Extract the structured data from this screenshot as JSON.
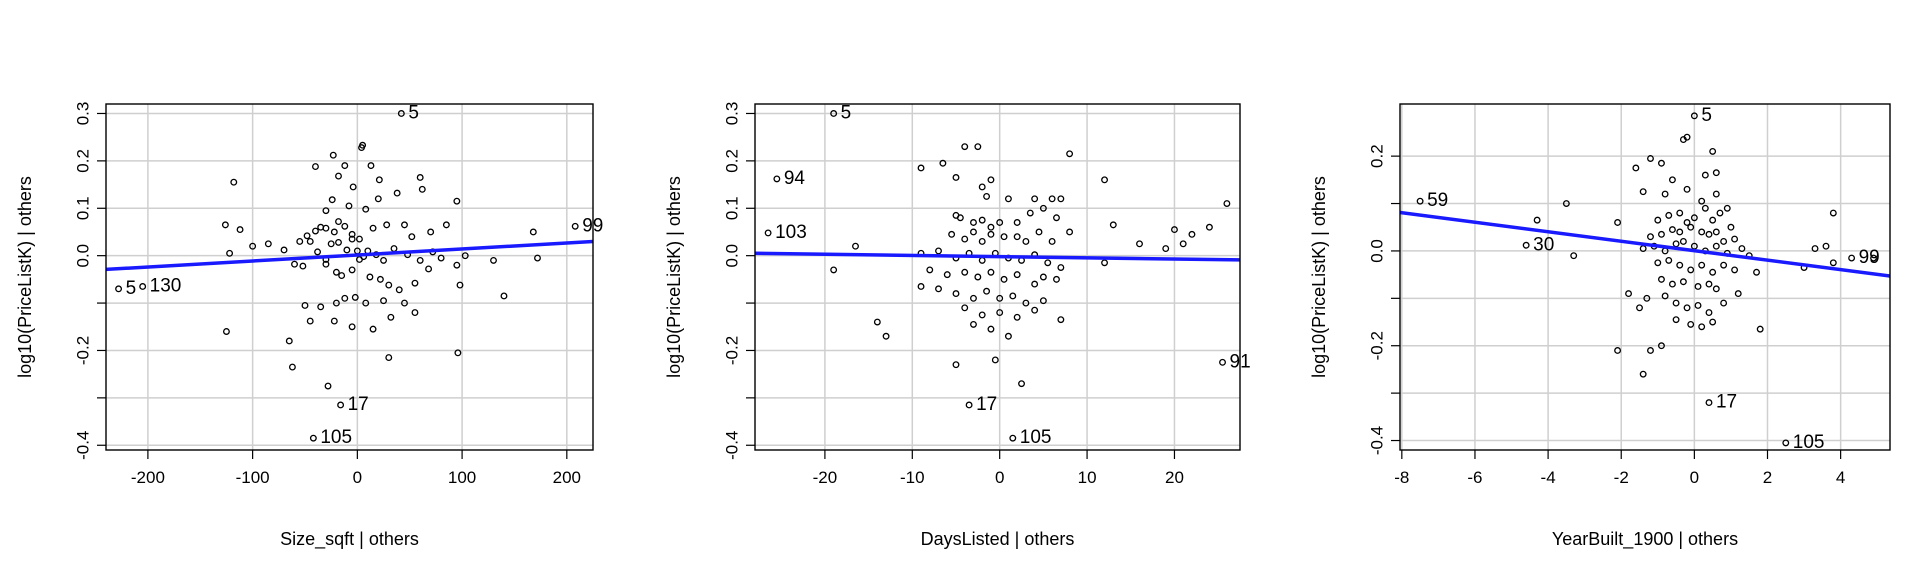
{
  "chart_data": [
    {
      "type": "scatter",
      "xlabel": "Size_sqft | others",
      "ylabel": "log10(PriceListK)  | others",
      "xlim": [
        -240,
        225
      ],
      "ylim": [
        -0.41,
        0.32
      ],
      "xticks": [
        -200,
        -100,
        0,
        100,
        200
      ],
      "yticks": [
        -0.4,
        -0.3,
        -0.2,
        -0.1,
        0.0,
        0.1,
        0.2,
        0.3
      ],
      "ytick_labels": [
        "-0.4",
        "",
        "-0.2",
        "",
        "0.0",
        "0.1",
        "0.2",
        "0.3"
      ],
      "grid": true,
      "fit_line": [
        [
          -240,
          -0.029
        ],
        [
          225,
          0.03
        ]
      ],
      "fit_color": "#1a1aff",
      "labels": [
        {
          "text": "5",
          "x": 42,
          "y": 0.3
        },
        {
          "text": "99",
          "x": 208,
          "y": 0.062
        },
        {
          "text": "5",
          "x": -228,
          "y": -0.07
        },
        {
          "text": "130",
          "x": -205,
          "y": -0.065
        },
        {
          "text": "17",
          "x": -16,
          "y": -0.315
        },
        {
          "text": "105",
          "x": -42,
          "y": -0.385
        }
      ],
      "points": [
        [
          42,
          0.3
        ],
        [
          5,
          0.233
        ],
        [
          4,
          0.228
        ],
        [
          208,
          0.062
        ],
        [
          -228,
          -0.07
        ],
        [
          -205,
          -0.065
        ],
        [
          -16,
          -0.315
        ],
        [
          -42,
          -0.385
        ],
        [
          -118,
          0.155
        ],
        [
          -23,
          0.212
        ],
        [
          -40,
          0.188
        ],
        [
          -12,
          0.19
        ],
        [
          -18,
          0.168
        ],
        [
          13,
          0.19
        ],
        [
          -4,
          0.145
        ],
        [
          60,
          0.165
        ],
        [
          21,
          0.16
        ],
        [
          38,
          0.132
        ],
        [
          62,
          0.14
        ],
        [
          20,
          0.12
        ],
        [
          -24,
          0.118
        ],
        [
          -8,
          0.105
        ],
        [
          -30,
          0.095
        ],
        [
          8,
          0.098
        ],
        [
          95,
          0.115
        ],
        [
          -126,
          0.065
        ],
        [
          -112,
          0.055
        ],
        [
          -100,
          0.02
        ],
        [
          -85,
          0.025
        ],
        [
          -70,
          0.012
        ],
        [
          -55,
          0.03
        ],
        [
          -48,
          0.042
        ],
        [
          -40,
          0.052
        ],
        [
          -35,
          0.06
        ],
        [
          -30,
          0.058
        ],
        [
          -22,
          0.05
        ],
        [
          -18,
          0.072
        ],
        [
          -12,
          0.062
        ],
        [
          -5,
          0.045
        ],
        [
          2,
          0.035
        ],
        [
          15,
          0.058
        ],
        [
          28,
          0.065
        ],
        [
          45,
          0.065
        ],
        [
          52,
          0.04
        ],
        [
          70,
          0.05
        ],
        [
          85,
          0.065
        ],
        [
          -45,
          0.03
        ],
        [
          -38,
          0.008
        ],
        [
          -30,
          -0.008
        ],
        [
          -25,
          0.025
        ],
        [
          -18,
          0.028
        ],
        [
          -10,
          0.012
        ],
        [
          -5,
          0.035
        ],
        [
          0,
          0.01
        ],
        [
          6,
          -0.002
        ],
        [
          10,
          0.01
        ],
        [
          18,
          0.002
        ],
        [
          25,
          -0.01
        ],
        [
          35,
          0.015
        ],
        [
          48,
          0.002
        ],
        [
          60,
          -0.01
        ],
        [
          72,
          0.008
        ],
        [
          80,
          -0.005
        ],
        [
          95,
          -0.02
        ],
        [
          -122,
          0.005
        ],
        [
          -60,
          -0.018
        ],
        [
          -52,
          -0.022
        ],
        [
          -30,
          -0.018
        ],
        [
          -20,
          -0.035
        ],
        [
          -15,
          -0.042
        ],
        [
          -5,
          -0.03
        ],
        [
          2,
          -0.008
        ],
        [
          12,
          -0.045
        ],
        [
          22,
          -0.05
        ],
        [
          30,
          -0.062
        ],
        [
          40,
          -0.072
        ],
        [
          55,
          -0.058
        ],
        [
          68,
          -0.028
        ],
        [
          98,
          -0.062
        ],
        [
          103,
          0.0
        ],
        [
          130,
          -0.01
        ],
        [
          140,
          -0.085
        ],
        [
          168,
          0.05
        ],
        [
          172,
          -0.005
        ],
        [
          -50,
          -0.105
        ],
        [
          -35,
          -0.108
        ],
        [
          -20,
          -0.1
        ],
        [
          -12,
          -0.09
        ],
        [
          -2,
          -0.088
        ],
        [
          8,
          -0.1
        ],
        [
          25,
          -0.095
        ],
        [
          45,
          -0.1
        ],
        [
          55,
          -0.12
        ],
        [
          -45,
          -0.138
        ],
        [
          -22,
          -0.138
        ],
        [
          -5,
          -0.15
        ],
        [
          15,
          -0.155
        ],
        [
          32,
          -0.13
        ],
        [
          -125,
          -0.16
        ],
        [
          -65,
          -0.18
        ],
        [
          -62,
          -0.235
        ],
        [
          -28,
          -0.275
        ],
        [
          30,
          -0.215
        ],
        [
          96,
          -0.205
        ]
      ]
    },
    {
      "type": "scatter",
      "xlabel": "DaysListed | others",
      "ylabel": "log10(PriceListK)  | others",
      "xlim": [
        -28,
        27.5
      ],
      "ylim": [
        -0.41,
        0.32
      ],
      "xticks": [
        -20,
        -10,
        0,
        10,
        20
      ],
      "yticks": [
        -0.4,
        -0.3,
        -0.2,
        -0.1,
        0.0,
        0.1,
        0.2,
        0.3
      ],
      "ytick_labels": [
        "-0.4",
        "",
        "-0.2",
        "",
        "0.0",
        "0.1",
        "0.2",
        "0.3"
      ],
      "grid": true,
      "fit_line": [
        [
          -28,
          0.005
        ],
        [
          27.5,
          -0.009
        ]
      ],
      "fit_color": "#1a1aff",
      "labels": [
        {
          "text": "5",
          "x": -19,
          "y": 0.3
        },
        {
          "text": "94",
          "x": -25.5,
          "y": 0.162
        },
        {
          "text": "103",
          "x": -26.5,
          "y": 0.048
        },
        {
          "text": "17",
          "x": -3.5,
          "y": -0.315
        },
        {
          "text": "105",
          "x": 1.5,
          "y": -0.385
        },
        {
          "text": "91",
          "x": 25.5,
          "y": -0.225
        }
      ],
      "points": [
        [
          -19,
          0.3
        ],
        [
          -25.5,
          0.162
        ],
        [
          -26.5,
          0.048
        ],
        [
          -3.5,
          -0.315
        ],
        [
          1.5,
          -0.385
        ],
        [
          25.5,
          -0.225
        ],
        [
          -19,
          -0.03
        ],
        [
          -16.5,
          0.02
        ],
        [
          -14,
          -0.14
        ],
        [
          -13,
          -0.17
        ],
        [
          -9,
          0.185
        ],
        [
          -6.5,
          0.195
        ],
        [
          -4,
          0.23
        ],
        [
          -2.5,
          0.23
        ],
        [
          -1,
          0.16
        ],
        [
          8,
          0.215
        ],
        [
          -5,
          0.165
        ],
        [
          -2,
          0.145
        ],
        [
          -1.5,
          0.125
        ],
        [
          1,
          0.12
        ],
        [
          4,
          0.12
        ],
        [
          6,
          0.12
        ],
        [
          12,
          0.16
        ],
        [
          -5,
          0.085
        ],
        [
          -4.5,
          0.08
        ],
        [
          -3,
          0.07
        ],
        [
          -2,
          0.075
        ],
        [
          -1,
          0.06
        ],
        [
          0,
          0.07
        ],
        [
          2,
          0.07
        ],
        [
          3.5,
          0.09
        ],
        [
          5,
          0.1
        ],
        [
          6.5,
          0.08
        ],
        [
          7,
          0.12
        ],
        [
          -5.5,
          0.045
        ],
        [
          -4,
          0.035
        ],
        [
          -3,
          0.05
        ],
        [
          -2,
          0.03
        ],
        [
          -1,
          0.045
        ],
        [
          0.5,
          0.04
        ],
        [
          2,
          0.04
        ],
        [
          3,
          0.03
        ],
        [
          4.5,
          0.05
        ],
        [
          6,
          0.03
        ],
        [
          8,
          0.05
        ],
        [
          13,
          0.065
        ],
        [
          16,
          0.025
        ],
        [
          20,
          0.055
        ],
        [
          22,
          0.045
        ],
        [
          24,
          0.06
        ],
        [
          26,
          0.11
        ],
        [
          19,
          0.015
        ],
        [
          21,
          0.025
        ],
        [
          -9,
          0.005
        ],
        [
          -7,
          0.01
        ],
        [
          -5,
          -0.005
        ],
        [
          -3.5,
          0.005
        ],
        [
          -2,
          -0.01
        ],
        [
          -0.5,
          0.005
        ],
        [
          1,
          -0.005
        ],
        [
          2.5,
          -0.01
        ],
        [
          4,
          0.002
        ],
        [
          5.5,
          -0.015
        ],
        [
          7,
          -0.025
        ],
        [
          12,
          -0.015
        ],
        [
          -8,
          -0.03
        ],
        [
          -6,
          -0.04
        ],
        [
          -4,
          -0.035
        ],
        [
          -2.5,
          -0.045
        ],
        [
          -1,
          -0.035
        ],
        [
          0.5,
          -0.05
        ],
        [
          2,
          -0.04
        ],
        [
          4,
          -0.06
        ],
        [
          5,
          -0.045
        ],
        [
          6.5,
          -0.05
        ],
        [
          -9,
          -0.065
        ],
        [
          -7,
          -0.07
        ],
        [
          -5,
          -0.08
        ],
        [
          -3,
          -0.09
        ],
        [
          -1.5,
          -0.075
        ],
        [
          0,
          -0.09
        ],
        [
          1.5,
          -0.085
        ],
        [
          3,
          -0.1
        ],
        [
          5,
          -0.095
        ],
        [
          -4,
          -0.11
        ],
        [
          -2,
          -0.125
        ],
        [
          0,
          -0.12
        ],
        [
          2,
          -0.13
        ],
        [
          4,
          -0.115
        ],
        [
          7,
          -0.135
        ],
        [
          -3,
          -0.145
        ],
        [
          -1,
          -0.155
        ],
        [
          1,
          -0.17
        ],
        [
          -5,
          -0.23
        ],
        [
          -0.5,
          -0.22
        ],
        [
          2.5,
          -0.27
        ]
      ]
    },
    {
      "type": "scatter",
      "xlabel": "YearBuilt_1900 | others",
      "ylabel": "log10(PriceListK)  | others",
      "xlim": [
        -8.05,
        5.35
      ],
      "ylim": [
        -0.42,
        0.31
      ],
      "xticks": [
        -8,
        -6,
        -4,
        -2,
        0,
        2,
        4
      ],
      "yticks": [
        -0.4,
        -0.3,
        -0.2,
        -0.1,
        0.0,
        0.1,
        0.2
      ],
      "ytick_labels": [
        "-0.4",
        "",
        "-0.2",
        "",
        "0.0",
        "",
        "0.2"
      ],
      "grid": true,
      "fit_line": [
        [
          -8.05,
          0.081
        ],
        [
          5.35,
          -0.053
        ]
      ],
      "fit_color": "#1a1aff",
      "labels": [
        {
          "text": "5",
          "x": 0.0,
          "y": 0.285
        },
        {
          "text": "59",
          "x": -7.5,
          "y": 0.105
        },
        {
          "text": "30",
          "x": -4.6,
          "y": 0.012
        },
        {
          "text": "99",
          "x": 4.3,
          "y": -0.015
        },
        {
          "text": "17",
          "x": 0.4,
          "y": -0.32
        },
        {
          "text": "105",
          "x": 2.5,
          "y": -0.405
        }
      ],
      "points": [
        [
          0.0,
          0.285
        ],
        [
          -7.5,
          0.105
        ],
        [
          -4.6,
          0.012
        ],
        [
          4.3,
          -0.015
        ],
        [
          0.4,
          -0.32
        ],
        [
          2.5,
          -0.405
        ],
        [
          -3.5,
          0.1
        ],
        [
          -3.3,
          -0.01
        ],
        [
          -4.3,
          0.065
        ],
        [
          -2.1,
          0.06
        ],
        [
          -1.8,
          -0.09
        ],
        [
          -2.1,
          -0.21
        ],
        [
          -1.5,
          -0.12
        ],
        [
          -1.6,
          0.175
        ],
        [
          -1.2,
          0.195
        ],
        [
          -0.9,
          0.185
        ],
        [
          -0.3,
          0.235
        ],
        [
          -0.2,
          0.24
        ],
        [
          0.5,
          0.21
        ],
        [
          -1.4,
          0.125
        ],
        [
          -0.6,
          0.15
        ],
        [
          0.3,
          0.16
        ],
        [
          0.6,
          0.165
        ],
        [
          -0.8,
          0.12
        ],
        [
          -0.2,
          0.13
        ],
        [
          0.2,
          0.105
        ],
        [
          0.6,
          0.12
        ],
        [
          0.9,
          0.09
        ],
        [
          -1.0,
          0.065
        ],
        [
          -0.7,
          0.075
        ],
        [
          -0.4,
          0.08
        ],
        [
          -0.2,
          0.06
        ],
        [
          0.0,
          0.07
        ],
        [
          0.3,
          0.09
        ],
        [
          0.5,
          0.065
        ],
        [
          0.7,
          0.08
        ],
        [
          1.0,
          0.05
        ],
        [
          -1.2,
          0.03
        ],
        [
          -0.9,
          0.035
        ],
        [
          -0.6,
          0.045
        ],
        [
          -0.4,
          0.04
        ],
        [
          -0.1,
          0.05
        ],
        [
          0.2,
          0.04
        ],
        [
          0.4,
          0.035
        ],
        [
          0.6,
          0.04
        ],
        [
          0.8,
          0.02
        ],
        [
          1.1,
          0.025
        ],
        [
          -1.4,
          0.005
        ],
        [
          -1.1,
          0.01
        ],
        [
          -0.8,
          0.0
        ],
        [
          -0.5,
          0.015
        ],
        [
          -0.3,
          0.02
        ],
        [
          0.0,
          0.01
        ],
        [
          0.3,
          0.0
        ],
        [
          0.6,
          0.01
        ],
        [
          0.9,
          -0.005
        ],
        [
          1.3,
          0.005
        ],
        [
          1.5,
          -0.01
        ],
        [
          -1.0,
          -0.025
        ],
        [
          -0.7,
          -0.02
        ],
        [
          -0.4,
          -0.03
        ],
        [
          -0.1,
          -0.04
        ],
        [
          0.2,
          -0.03
        ],
        [
          0.5,
          -0.045
        ],
        [
          0.8,
          -0.03
        ],
        [
          1.1,
          -0.04
        ],
        [
          1.7,
          -0.045
        ],
        [
          -0.9,
          -0.06
        ],
        [
          -0.6,
          -0.07
        ],
        [
          -0.3,
          -0.065
        ],
        [
          0.1,
          -0.075
        ],
        [
          0.4,
          -0.07
        ],
        [
          0.6,
          -0.08
        ],
        [
          1.2,
          -0.09
        ],
        [
          -1.3,
          -0.1
        ],
        [
          -0.8,
          -0.095
        ],
        [
          -0.5,
          -0.11
        ],
        [
          -0.2,
          -0.12
        ],
        [
          0.1,
          -0.115
        ],
        [
          0.4,
          -0.13
        ],
        [
          0.8,
          -0.11
        ],
        [
          -0.5,
          -0.145
        ],
        [
          -0.1,
          -0.155
        ],
        [
          0.2,
          -0.16
        ],
        [
          0.5,
          -0.15
        ],
        [
          -1.2,
          -0.21
        ],
        [
          -1.4,
          -0.26
        ],
        [
          1.8,
          -0.165
        ],
        [
          3.0,
          -0.035
        ],
        [
          3.3,
          0.005
        ],
        [
          3.6,
          0.01
        ],
        [
          3.8,
          -0.025
        ],
        [
          3.8,
          0.08
        ],
        [
          4.9,
          -0.015
        ],
        [
          -0.9,
          -0.2
        ]
      ]
    }
  ]
}
